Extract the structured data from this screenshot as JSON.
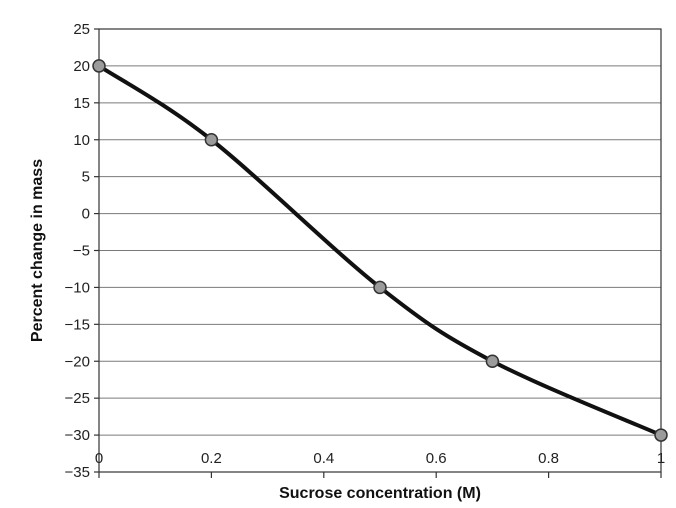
{
  "chart_data": {
    "type": "line",
    "title": "",
    "xlabel": "Sucrose concentration (M)",
    "ylabel": "Percent change in mass",
    "xlim": [
      0,
      1
    ],
    "ylim": [
      -35,
      25
    ],
    "x_ticks": [
      0,
      0.2,
      0.4,
      0.6,
      0.8,
      1
    ],
    "x_tick_labels": [
      "0",
      "0.2",
      "0.4",
      "0.6",
      "0.8",
      "1"
    ],
    "y_ticks": [
      25,
      20,
      15,
      10,
      5,
      0,
      -5,
      -10,
      -15,
      -20,
      -25,
      -30,
      -35
    ],
    "y_tick_labels": [
      "25",
      "20",
      "15",
      "10",
      "5",
      "0",
      "−5",
      "−10",
      "−15",
      "−20",
      "−25",
      "−30",
      "−35"
    ],
    "grid": true,
    "series": [
      {
        "name": "Percent change in mass",
        "x": [
          0,
          0.2,
          0.5,
          0.7,
          1
        ],
        "y": [
          20,
          10,
          -10,
          -20,
          -30
        ]
      }
    ],
    "colors": {
      "line": "#111111",
      "marker_fill": "#9b9b9b",
      "grid": "#7a7a7a"
    }
  }
}
